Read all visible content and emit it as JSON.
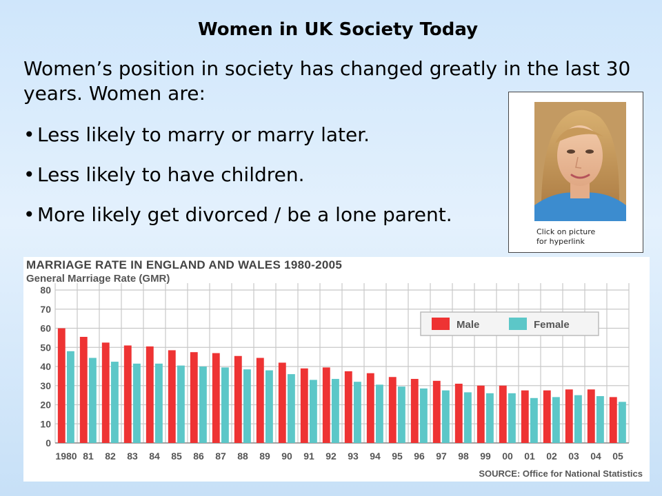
{
  "slide": {
    "title": "Women in UK Society Today",
    "intro": "Women’s position in society has changed greatly in the last 30 years. Women are:",
    "bullet_char": "•",
    "bullets": [
      "Less likely to marry or marry later.",
      "Less likely to have children.",
      "More likely get divorced / be a lone parent."
    ]
  },
  "photo": {
    "caption_line1": "Click on picture",
    "caption_line2": "for hyperlink"
  },
  "colors": {
    "male": "#ee3333",
    "female": "#5cc7c8"
  },
  "chart_data": {
    "type": "bar",
    "title": "MARRIAGE RATE IN ENGLAND AND WALES 1980-2005",
    "ylabel": "General Marriage Rate (GMR)",
    "source": "SOURCE: Office for National Statistics",
    "ylim": [
      0,
      80
    ],
    "yticks": [
      0,
      10,
      20,
      30,
      40,
      50,
      60,
      70,
      80
    ],
    "grid": true,
    "legend_position": "top-right",
    "categories": [
      "1980",
      "81",
      "82",
      "83",
      "84",
      "85",
      "86",
      "87",
      "88",
      "89",
      "90",
      "91",
      "92",
      "93",
      "94",
      "95",
      "96",
      "97",
      "98",
      "99",
      "00",
      "01",
      "02",
      "03",
      "04",
      "05"
    ],
    "series": [
      {
        "name": "Male",
        "values": [
          60,
          55.5,
          52.5,
          51,
          50.5,
          48.5,
          47.5,
          47,
          45.5,
          44.5,
          42,
          39,
          39.5,
          37.5,
          36.5,
          34.5,
          33.5,
          32.5,
          31,
          30,
          30,
          27.5,
          27.5,
          28,
          28,
          24
        ]
      },
      {
        "name": "Female",
        "values": [
          48,
          44.5,
          42.5,
          41.5,
          41.5,
          40.5,
          40,
          39.5,
          38.5,
          38,
          36,
          33,
          33.5,
          32,
          30.5,
          29.5,
          28.5,
          27.5,
          26.5,
          26,
          26,
          23.5,
          24,
          25,
          24.5,
          21.5
        ]
      }
    ]
  }
}
